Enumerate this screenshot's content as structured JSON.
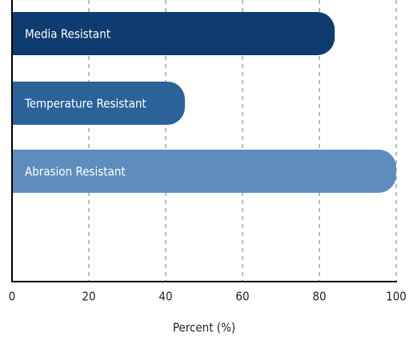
{
  "chart_data": {
    "type": "barh",
    "categories": [
      "Media Resistant",
      "Temperature Resistant",
      "Abrasion Resistant"
    ],
    "values": [
      84,
      45,
      100
    ],
    "colors": [
      "#0e3c70",
      "#2b6399",
      "#5e8dbd"
    ],
    "xlabel": "Percent (%)",
    "xlim": [
      0,
      100
    ],
    "xticks": [
      0,
      20,
      40,
      60,
      80,
      100
    ],
    "grid": true
  }
}
